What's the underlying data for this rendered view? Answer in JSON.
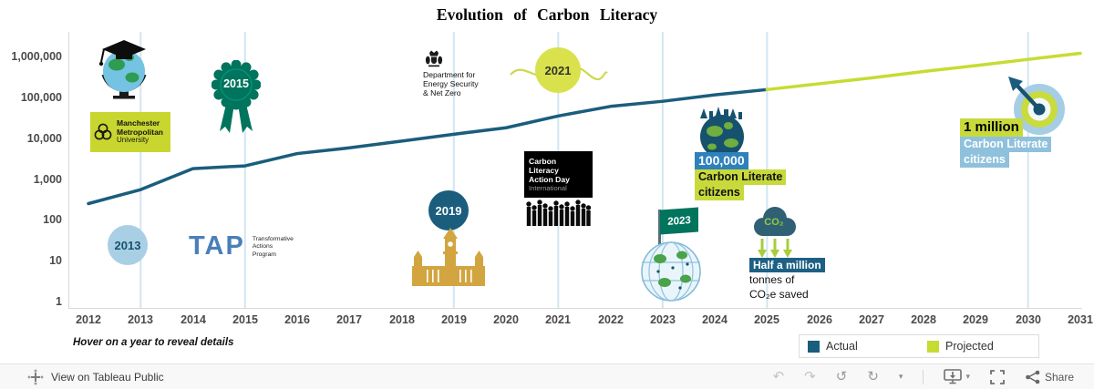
{
  "title": "Evolution of Carbon Literacy",
  "hint": "Hover on a year to reveal details",
  "colors": {
    "actual": "#1a5d7d",
    "projected": "#c6dc33",
    "milestone_green": "#00745c",
    "light_blue": "#a9cfe5",
    "highlight_blue": "#2e81ba",
    "highlight_dark_blue": "#1d6084",
    "highlight_yellow_green": "#c8da3b",
    "highlight_light_blue": "#8fc1dc",
    "gridline": "#d2e6f2",
    "gold": "#d2a540"
  },
  "chart_data": {
    "type": "line",
    "title": "Evolution of Carbon Literacy",
    "y_scale": "log",
    "ylim": [
      1,
      2000000
    ],
    "grid": "vertical-milestone-years",
    "legend_position": "bottom-right",
    "y_ticks": [
      "1,000,000",
      "100,000",
      "10,000",
      "1,000",
      "100",
      "10",
      "1"
    ],
    "x_ticks": [
      "2012",
      "2013",
      "2014",
      "2015",
      "2016",
      "2017",
      "2018",
      "2019",
      "2020",
      "2021",
      "2022",
      "2023",
      "2024",
      "2025",
      "2026",
      "2027",
      "2028",
      "2029",
      "2030",
      "2031"
    ],
    "gridline_years": [
      2013,
      2015,
      2019,
      2021,
      2023,
      2025,
      2030
    ],
    "series": [
      {
        "name": "Actual",
        "color": "#1a5d7d",
        "x": [
          2012,
          2013,
          2014,
          2015,
          2016,
          2017,
          2018,
          2019,
          2020,
          2021,
          2022,
          2023,
          2024,
          2025
        ],
        "values": [
          250,
          550,
          1800,
          2100,
          4200,
          5800,
          8500,
          12500,
          18000,
          35000,
          60000,
          80000,
          115000,
          155000
        ]
      },
      {
        "name": "Projected",
        "color": "#c6dc33",
        "x": [
          2025,
          2026,
          2027,
          2028,
          2029,
          2030,
          2031
        ],
        "values": [
          155000,
          215000,
          300000,
          430000,
          600000,
          850000,
          1200000
        ]
      }
    ]
  },
  "legend": {
    "items": [
      {
        "label": "Actual",
        "color": "#1a5d7d"
      },
      {
        "label": "Projected",
        "color": "#c6dc33"
      }
    ]
  },
  "annotations": {
    "year_2013": "2013",
    "year_2015": "2015",
    "year_2019": "2019",
    "year_2021": "2021",
    "year_2023": "2023",
    "mmu": {
      "line1": "Manchester",
      "line2": "Metropolitan",
      "line3": "University"
    },
    "tap": {
      "abbr": "TAP",
      "line1": "Transformative",
      "line2": "Actions",
      "line3": "Program"
    },
    "desnz": {
      "line1": "Department for",
      "line2": "Energy Security",
      "line3": "& Net Zero"
    },
    "clad": {
      "line1": "Carbon Literacy",
      "line2": "Action Day",
      "line3": "International"
    },
    "milestone_100k": {
      "value": "100,000",
      "line2": "Carbon Literate",
      "line3": "citizens"
    },
    "co2_saved": {
      "cloud": "CO₂",
      "line1": "Half a million",
      "line2": "tonnes of",
      "line3": "CO₂e saved"
    },
    "milestone_1m": {
      "value": "1 million",
      "line2": "Carbon Literate",
      "line3": "citizens"
    }
  },
  "toolbar": {
    "view_label": "View on Tableau Public",
    "share_label": "Share",
    "icons": {
      "undo": "↶",
      "redo": "↷",
      "replay": "↺",
      "refresh": "↻",
      "caret": "▾"
    }
  }
}
